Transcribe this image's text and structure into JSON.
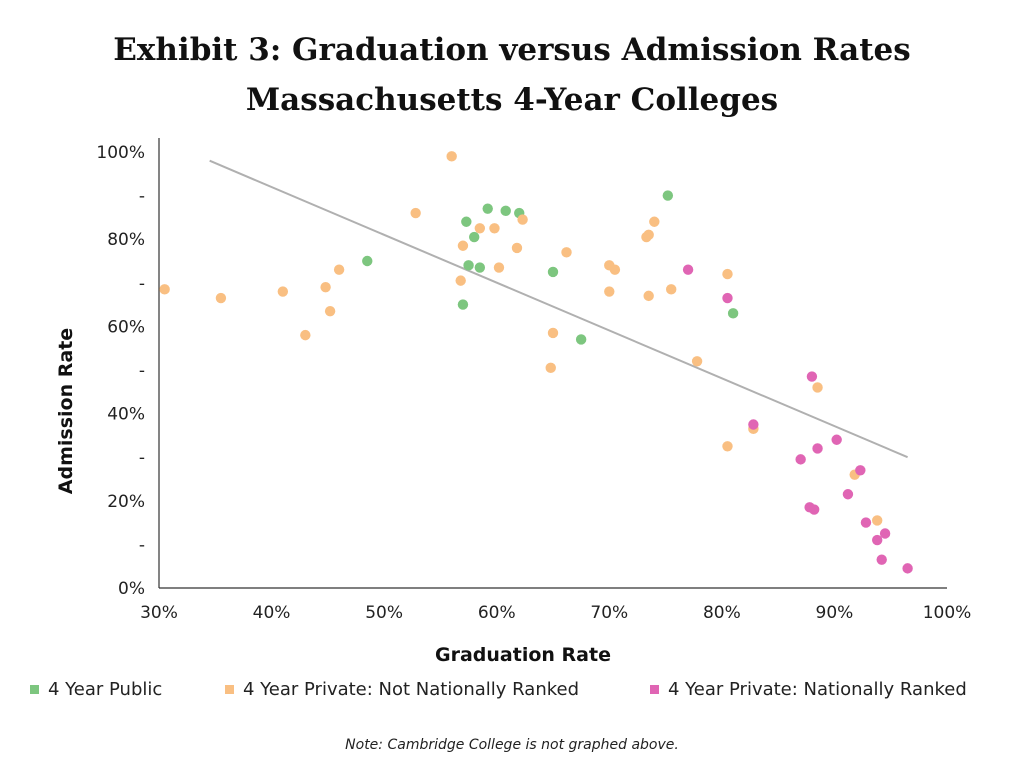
{
  "chart_data": {
    "type": "scatter",
    "title_line1": "Exhibit 3: Graduation versus Admission Rates",
    "title_line2": "Massachusetts 4-Year Colleges",
    "xlabel": "Graduation Rate",
    "ylabel": "Admission Rate",
    "xlim": [
      30,
      100
    ],
    "ylim": [
      0,
      100
    ],
    "x_ticks": [
      "30%",
      "40%",
      "50%",
      "60%",
      "70%",
      "80%",
      "90%",
      "100%"
    ],
    "y_ticks": [
      "0%",
      "-",
      "20%",
      "-",
      "40%",
      "-",
      "60%",
      "-",
      "80%",
      "-",
      "100%"
    ],
    "legend_position": "bottom",
    "trendline": {
      "x": [
        34.5,
        96.5
      ],
      "y": [
        98,
        30
      ],
      "color": "#b0b0b0"
    },
    "series": [
      {
        "name": "4 Year Public",
        "color": "#7dc67f",
        "points": [
          [
            48.5,
            75
          ],
          [
            57,
            65
          ],
          [
            57.3,
            84
          ],
          [
            57.5,
            74
          ],
          [
            58,
            80.5
          ],
          [
            58.5,
            73.5
          ],
          [
            59.2,
            87
          ],
          [
            60.8,
            86.5
          ],
          [
            62,
            86
          ],
          [
            65,
            72.5
          ],
          [
            67.5,
            57
          ],
          [
            75.2,
            90
          ],
          [
            81,
            63
          ]
        ]
      },
      {
        "name": "4 Year Private: Not Nationally Ranked",
        "color": "#f9bf82",
        "points": [
          [
            30.5,
            68.5
          ],
          [
            35.5,
            66.5
          ],
          [
            41,
            68
          ],
          [
            43,
            58
          ],
          [
            44.8,
            69
          ],
          [
            45.2,
            63.5
          ],
          [
            46,
            73
          ],
          [
            52.8,
            86
          ],
          [
            56,
            99
          ],
          [
            56.8,
            70.5
          ],
          [
            57,
            78.5
          ],
          [
            58.5,
            82.5
          ],
          [
            59.8,
            82.5
          ],
          [
            60.2,
            73.5
          ],
          [
            61.8,
            78
          ],
          [
            62.3,
            84.5
          ],
          [
            64.8,
            50.5
          ],
          [
            65,
            58.5
          ],
          [
            66.2,
            77
          ],
          [
            70,
            68
          ],
          [
            70,
            74
          ],
          [
            70.5,
            73
          ],
          [
            73.3,
            80.5
          ],
          [
            73.5,
            81
          ],
          [
            73.5,
            67
          ],
          [
            74,
            84
          ],
          [
            75.5,
            68.5
          ],
          [
            77.8,
            52
          ],
          [
            80.5,
            72
          ],
          [
            80.5,
            32.5
          ],
          [
            82.8,
            36.5
          ],
          [
            88.5,
            46
          ],
          [
            91.8,
            26
          ],
          [
            93.8,
            15.5
          ]
        ]
      },
      {
        "name": "4 Year Private: Nationally Ranked",
        "color": "#e065b4",
        "points": [
          [
            77,
            73
          ],
          [
            80.5,
            66.5
          ],
          [
            82.8,
            37.5
          ],
          [
            87,
            29.5
          ],
          [
            87.8,
            18.5
          ],
          [
            88,
            48.5
          ],
          [
            88.2,
            18
          ],
          [
            88.5,
            32
          ],
          [
            90.2,
            34
          ],
          [
            91.2,
            21.5
          ],
          [
            92.3,
            27
          ],
          [
            92.8,
            15
          ],
          [
            93.8,
            11
          ],
          [
            94.2,
            6.5
          ],
          [
            94.5,
            12.5
          ],
          [
            96.5,
            4.5
          ]
        ]
      }
    ],
    "note": "Note: Cambridge College is not graphed above."
  }
}
